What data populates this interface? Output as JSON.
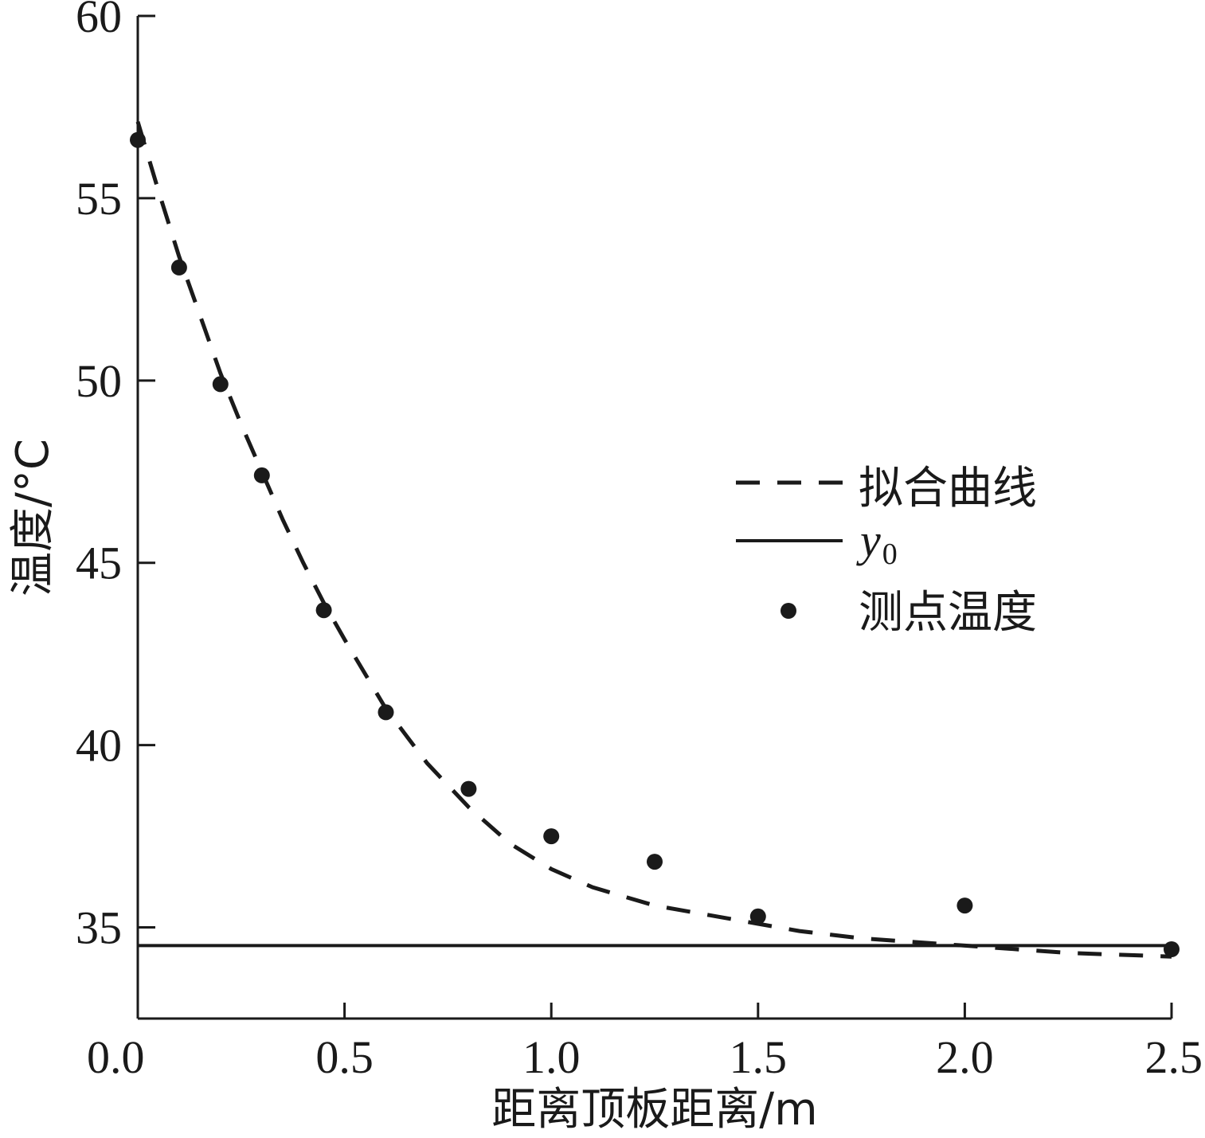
{
  "chart_data": {
    "type": "scatter",
    "title": "",
    "xlabel": "距离顶板距离/m",
    "ylabel": "温度/°C",
    "xlim": [
      0,
      2.5
    ],
    "ylim": [
      32.5,
      60
    ],
    "x_ticks": [
      {
        "value": 0.0,
        "label": "0.0"
      },
      {
        "value": 0.5,
        "label": "0.5"
      },
      {
        "value": 1.0,
        "label": "1.0"
      },
      {
        "value": 1.5,
        "label": "1.5"
      },
      {
        "value": 2.0,
        "label": "2.0"
      },
      {
        "value": 2.5,
        "label": "2.5"
      }
    ],
    "y_ticks": [
      {
        "value": 35,
        "label": "35"
      },
      {
        "value": 40,
        "label": "40"
      },
      {
        "value": 45,
        "label": "45"
      },
      {
        "value": 50,
        "label": "50"
      },
      {
        "value": 55,
        "label": "55"
      },
      {
        "value": 60,
        "label": "60"
      }
    ],
    "grid": false,
    "legend_position": "right",
    "series": [
      {
        "name": "拟合曲线",
        "kind": "line",
        "style": "dashed",
        "x": [
          0.0,
          0.05,
          0.1,
          0.15,
          0.2,
          0.25,
          0.3,
          0.35,
          0.4,
          0.45,
          0.5,
          0.6,
          0.7,
          0.8,
          0.9,
          1.0,
          1.1,
          1.25,
          1.4,
          1.5,
          1.6,
          1.75,
          2.0,
          2.25,
          2.5
        ],
        "y": [
          57.1,
          55.2,
          53.4,
          51.8,
          50.2,
          48.8,
          47.5,
          46.2,
          45.0,
          43.9,
          42.9,
          41.0,
          39.5,
          38.3,
          37.3,
          36.6,
          36.1,
          35.6,
          35.3,
          35.1,
          34.9,
          34.7,
          34.5,
          34.3,
          34.2
        ]
      },
      {
        "name": "y",
        "name_subscript": "0",
        "kind": "line",
        "style": "solid",
        "x": [
          0.0,
          2.5
        ],
        "y": [
          34.5,
          34.5
        ]
      },
      {
        "name": "测点温度",
        "kind": "scatter",
        "x": [
          0.0,
          0.1,
          0.2,
          0.3,
          0.45,
          0.6,
          0.8,
          1.0,
          1.25,
          1.5,
          2.0,
          2.5
        ],
        "y": [
          56.6,
          53.1,
          49.9,
          47.4,
          43.7,
          40.9,
          38.8,
          37.5,
          36.8,
          35.3,
          35.6,
          34.4
        ]
      }
    ]
  }
}
